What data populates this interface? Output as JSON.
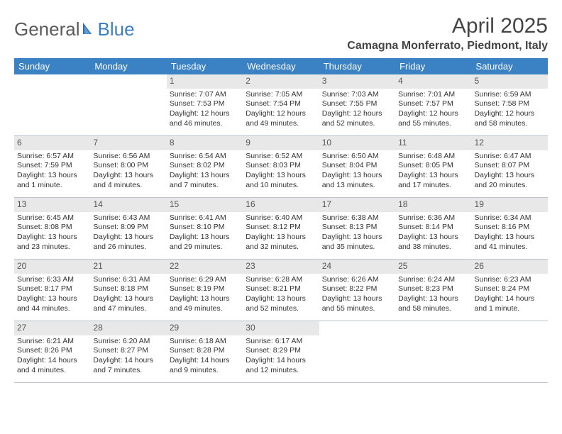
{
  "logo": {
    "text_general": "General",
    "text_blue": "Blue"
  },
  "title": "April 2025",
  "location": "Camagna Monferrato, Piedmont, Italy",
  "colors": {
    "header_bg": "#3b82c4",
    "header_text": "#ffffff",
    "daynum_bg": "#e8e8e8",
    "border": "#b8c4d0",
    "page_bg": "#ffffff",
    "body_text": "#333333"
  },
  "weekdays": [
    "Sunday",
    "Monday",
    "Tuesday",
    "Wednesday",
    "Thursday",
    "Friday",
    "Saturday"
  ],
  "weeks": [
    [
      null,
      null,
      {
        "d": "1",
        "sunrise": "Sunrise: 7:07 AM",
        "sunset": "Sunset: 7:53 PM",
        "daylight": "Daylight: 12 hours and 46 minutes."
      },
      {
        "d": "2",
        "sunrise": "Sunrise: 7:05 AM",
        "sunset": "Sunset: 7:54 PM",
        "daylight": "Daylight: 12 hours and 49 minutes."
      },
      {
        "d": "3",
        "sunrise": "Sunrise: 7:03 AM",
        "sunset": "Sunset: 7:55 PM",
        "daylight": "Daylight: 12 hours and 52 minutes."
      },
      {
        "d": "4",
        "sunrise": "Sunrise: 7:01 AM",
        "sunset": "Sunset: 7:57 PM",
        "daylight": "Daylight: 12 hours and 55 minutes."
      },
      {
        "d": "5",
        "sunrise": "Sunrise: 6:59 AM",
        "sunset": "Sunset: 7:58 PM",
        "daylight": "Daylight: 12 hours and 58 minutes."
      }
    ],
    [
      {
        "d": "6",
        "sunrise": "Sunrise: 6:57 AM",
        "sunset": "Sunset: 7:59 PM",
        "daylight": "Daylight: 13 hours and 1 minute."
      },
      {
        "d": "7",
        "sunrise": "Sunrise: 6:56 AM",
        "sunset": "Sunset: 8:00 PM",
        "daylight": "Daylight: 13 hours and 4 minutes."
      },
      {
        "d": "8",
        "sunrise": "Sunrise: 6:54 AM",
        "sunset": "Sunset: 8:02 PM",
        "daylight": "Daylight: 13 hours and 7 minutes."
      },
      {
        "d": "9",
        "sunrise": "Sunrise: 6:52 AM",
        "sunset": "Sunset: 8:03 PM",
        "daylight": "Daylight: 13 hours and 10 minutes."
      },
      {
        "d": "10",
        "sunrise": "Sunrise: 6:50 AM",
        "sunset": "Sunset: 8:04 PM",
        "daylight": "Daylight: 13 hours and 13 minutes."
      },
      {
        "d": "11",
        "sunrise": "Sunrise: 6:48 AM",
        "sunset": "Sunset: 8:05 PM",
        "daylight": "Daylight: 13 hours and 17 minutes."
      },
      {
        "d": "12",
        "sunrise": "Sunrise: 6:47 AM",
        "sunset": "Sunset: 8:07 PM",
        "daylight": "Daylight: 13 hours and 20 minutes."
      }
    ],
    [
      {
        "d": "13",
        "sunrise": "Sunrise: 6:45 AM",
        "sunset": "Sunset: 8:08 PM",
        "daylight": "Daylight: 13 hours and 23 minutes."
      },
      {
        "d": "14",
        "sunrise": "Sunrise: 6:43 AM",
        "sunset": "Sunset: 8:09 PM",
        "daylight": "Daylight: 13 hours and 26 minutes."
      },
      {
        "d": "15",
        "sunrise": "Sunrise: 6:41 AM",
        "sunset": "Sunset: 8:10 PM",
        "daylight": "Daylight: 13 hours and 29 minutes."
      },
      {
        "d": "16",
        "sunrise": "Sunrise: 6:40 AM",
        "sunset": "Sunset: 8:12 PM",
        "daylight": "Daylight: 13 hours and 32 minutes."
      },
      {
        "d": "17",
        "sunrise": "Sunrise: 6:38 AM",
        "sunset": "Sunset: 8:13 PM",
        "daylight": "Daylight: 13 hours and 35 minutes."
      },
      {
        "d": "18",
        "sunrise": "Sunrise: 6:36 AM",
        "sunset": "Sunset: 8:14 PM",
        "daylight": "Daylight: 13 hours and 38 minutes."
      },
      {
        "d": "19",
        "sunrise": "Sunrise: 6:34 AM",
        "sunset": "Sunset: 8:16 PM",
        "daylight": "Daylight: 13 hours and 41 minutes."
      }
    ],
    [
      {
        "d": "20",
        "sunrise": "Sunrise: 6:33 AM",
        "sunset": "Sunset: 8:17 PM",
        "daylight": "Daylight: 13 hours and 44 minutes."
      },
      {
        "d": "21",
        "sunrise": "Sunrise: 6:31 AM",
        "sunset": "Sunset: 8:18 PM",
        "daylight": "Daylight: 13 hours and 47 minutes."
      },
      {
        "d": "22",
        "sunrise": "Sunrise: 6:29 AM",
        "sunset": "Sunset: 8:19 PM",
        "daylight": "Daylight: 13 hours and 49 minutes."
      },
      {
        "d": "23",
        "sunrise": "Sunrise: 6:28 AM",
        "sunset": "Sunset: 8:21 PM",
        "daylight": "Daylight: 13 hours and 52 minutes."
      },
      {
        "d": "24",
        "sunrise": "Sunrise: 6:26 AM",
        "sunset": "Sunset: 8:22 PM",
        "daylight": "Daylight: 13 hours and 55 minutes."
      },
      {
        "d": "25",
        "sunrise": "Sunrise: 6:24 AM",
        "sunset": "Sunset: 8:23 PM",
        "daylight": "Daylight: 13 hours and 58 minutes."
      },
      {
        "d": "26",
        "sunrise": "Sunrise: 6:23 AM",
        "sunset": "Sunset: 8:24 PM",
        "daylight": "Daylight: 14 hours and 1 minute."
      }
    ],
    [
      {
        "d": "27",
        "sunrise": "Sunrise: 6:21 AM",
        "sunset": "Sunset: 8:26 PM",
        "daylight": "Daylight: 14 hours and 4 minutes."
      },
      {
        "d": "28",
        "sunrise": "Sunrise: 6:20 AM",
        "sunset": "Sunset: 8:27 PM",
        "daylight": "Daylight: 14 hours and 7 minutes."
      },
      {
        "d": "29",
        "sunrise": "Sunrise: 6:18 AM",
        "sunset": "Sunset: 8:28 PM",
        "daylight": "Daylight: 14 hours and 9 minutes."
      },
      {
        "d": "30",
        "sunrise": "Sunrise: 6:17 AM",
        "sunset": "Sunset: 8:29 PM",
        "daylight": "Daylight: 14 hours and 12 minutes."
      },
      null,
      null,
      null
    ]
  ]
}
